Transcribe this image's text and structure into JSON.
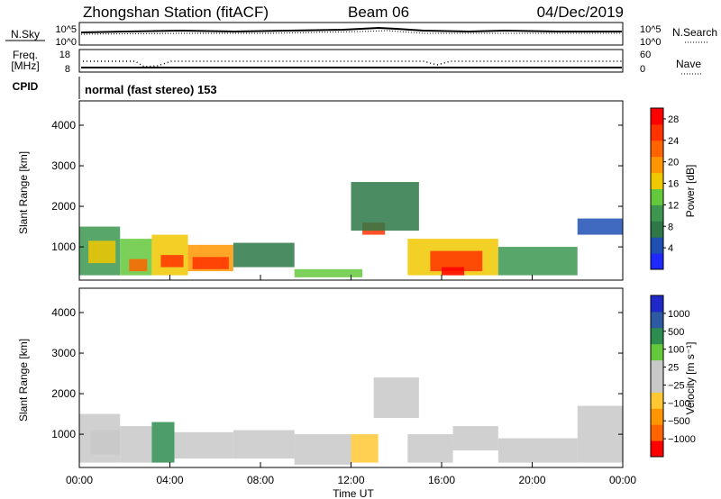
{
  "header": {
    "title": "Zhongshan Station (fitACF)",
    "beam": "Beam 06",
    "date": "04/Dec/2019"
  },
  "params": {
    "nsky_label": "N.Sky",
    "nsky_ticks": [
      "10^5",
      "10^0"
    ],
    "nsearch_label": "N.Search",
    "freq_label_1": "Freq.",
    "freq_label_2": "[MHz]",
    "freq_ticks": [
      "18",
      "8"
    ],
    "nave_label": "Nave",
    "nave_ticks": [
      "60",
      "0"
    ],
    "cpid_label": "CPID",
    "cpid_text": "normal (fast stereo) 153"
  },
  "colors": {
    "power_scale": [
      "#1e28ff",
      "#1e50b4",
      "#2d7846",
      "#3c9650",
      "#64c83c",
      "#f0c800",
      "#ff9600",
      "#ff6400",
      "#ff3200",
      "#ff0000"
    ],
    "velocity_scale": [
      "#ff0000",
      "#ff6400",
      "#ff9600",
      "#ffc832",
      "#c8c8c8",
      "#c8c8c8",
      "#64c83c",
      "#2d8c50",
      "#2d5aa0",
      "#1e28c8"
    ]
  },
  "chart_data": [
    {
      "type": "heatmap",
      "name": "power",
      "xlabel": "",
      "ylabel": "Slant Range [km]",
      "ylim": [
        180,
        4600
      ],
      "yticks": [
        "1000",
        "2000",
        "3000",
        "4000"
      ],
      "colorbar_label": "Power [dB]",
      "colorbar_ticks": [
        "4",
        "8",
        "12",
        "16",
        "20",
        "24",
        "28"
      ],
      "colorbar_range": [
        0,
        30
      ],
      "regions": [
        {
          "t0": 0.0,
          "t1": 1.8,
          "r0": 300,
          "r1": 1500,
          "level": 9
        },
        {
          "t0": 0.4,
          "t1": 1.6,
          "r0": 600,
          "r1": 1150,
          "level": 15
        },
        {
          "t0": 1.8,
          "t1": 3.2,
          "r0": 300,
          "r1": 1200,
          "level": 12
        },
        {
          "t0": 2.2,
          "t1": 3.0,
          "r0": 400,
          "r1": 700,
          "level": 22
        },
        {
          "t0": 3.2,
          "t1": 4.8,
          "r0": 300,
          "r1": 1300,
          "level": 16
        },
        {
          "t0": 3.6,
          "t1": 4.6,
          "r0": 500,
          "r1": 800,
          "level": 24
        },
        {
          "t0": 4.8,
          "t1": 6.8,
          "r0": 400,
          "r1": 1050,
          "level": 18
        },
        {
          "t0": 5.0,
          "t1": 6.6,
          "r0": 450,
          "r1": 750,
          "level": 26
        },
        {
          "t0": 6.8,
          "t1": 9.5,
          "r0": 500,
          "r1": 1100,
          "level": 8
        },
        {
          "t0": 9.5,
          "t1": 12.5,
          "r0": 250,
          "r1": 450,
          "level": 14
        },
        {
          "t0": 12.5,
          "t1": 13.5,
          "r0": 1300,
          "r1": 1600,
          "level": 24
        },
        {
          "t0": 12.0,
          "t1": 15.0,
          "r0": 1400,
          "r1": 2600,
          "level": 8
        },
        {
          "t0": 14.5,
          "t1": 18.5,
          "r0": 300,
          "r1": 1200,
          "level": 16
        },
        {
          "t0": 15.5,
          "t1": 17.8,
          "r0": 400,
          "r1": 900,
          "level": 26
        },
        {
          "t0": 16.0,
          "t1": 17.0,
          "r0": 300,
          "r1": 500,
          "level": 28
        },
        {
          "t0": 18.5,
          "t1": 22.0,
          "r0": 300,
          "r1": 1000,
          "level": 9
        },
        {
          "t0": 22.0,
          "t1": 24.0,
          "r0": 1300,
          "r1": 1700,
          "level": 5
        }
      ]
    },
    {
      "type": "heatmap",
      "name": "velocity",
      "xlabel": "Time UT",
      "ylabel": "Slant Range [km]",
      "ylim": [
        180,
        4600
      ],
      "xticks": [
        "00:00",
        "04:00",
        "08:00",
        "12:00",
        "16:00",
        "20:00",
        "00:00"
      ],
      "xlim": [
        0,
        24
      ],
      "yticks": [
        "1000",
        "2000",
        "3000",
        "4000"
      ],
      "colorbar_label": "Velocity [m s⁻¹]",
      "colorbar_ticks": [
        "1000",
        "500",
        "100",
        "25",
        "−25",
        "−100",
        "−500",
        "−1000"
      ],
      "colorbar_range": [
        -1200,
        1200
      ],
      "regions": [
        {
          "t0": 0.0,
          "t1": 1.8,
          "r0": 300,
          "r1": 1500,
          "level": 150
        },
        {
          "t0": 0.5,
          "t1": 1.8,
          "r0": 500,
          "r1": 1100,
          "level": -200
        },
        {
          "t0": 1.8,
          "t1": 3.2,
          "r0": 300,
          "r1": 1200,
          "level": -150
        },
        {
          "t0": 3.2,
          "t1": 4.2,
          "r0": 300,
          "r1": 1300,
          "level": 600
        },
        {
          "t0": 4.2,
          "t1": 6.8,
          "r0": 400,
          "r1": 1050,
          "level": -80
        },
        {
          "t0": 6.8,
          "t1": 9.5,
          "r0": 400,
          "r1": 1100,
          "level": 200
        },
        {
          "t0": 9.5,
          "t1": 12.0,
          "r0": 250,
          "r1": 1000,
          "level": 0
        },
        {
          "t0": 12.0,
          "t1": 13.2,
          "r0": 300,
          "r1": 1000,
          "level": -400
        },
        {
          "t0": 13.0,
          "t1": 15.0,
          "r0": 1400,
          "r1": 2400,
          "level": 0
        },
        {
          "t0": 14.5,
          "t1": 16.5,
          "r0": 300,
          "r1": 1000,
          "level": -150
        },
        {
          "t0": 16.5,
          "t1": 18.5,
          "r0": 600,
          "r1": 1200,
          "level": -200
        },
        {
          "t0": 18.5,
          "t1": 22.0,
          "r0": 300,
          "r1": 900,
          "level": 150
        },
        {
          "t0": 22.0,
          "t1": 24.0,
          "r0": 300,
          "r1": 1700,
          "level": 0
        }
      ]
    }
  ]
}
